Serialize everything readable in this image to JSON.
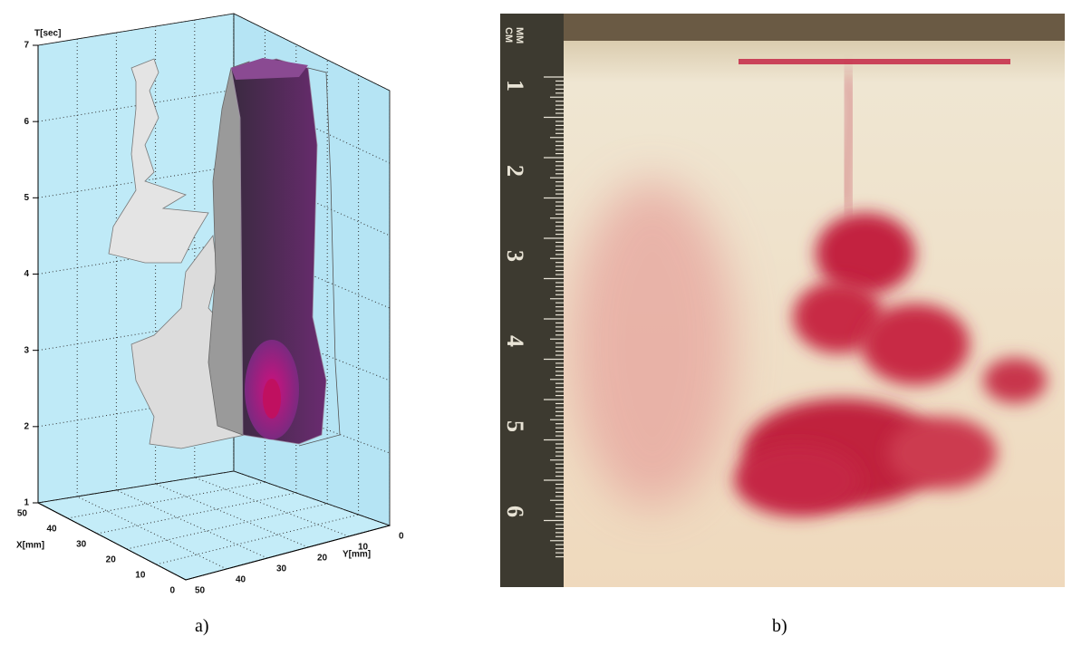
{
  "panel_a": {
    "axis_labels": {
      "t": "T[sec]",
      "x": "X[mm]",
      "y": "Y[mm]"
    },
    "t_ticks": [
      "7",
      "6",
      "5",
      "4",
      "3",
      "2",
      "1"
    ],
    "x_ticks": [
      "50",
      "40",
      "30",
      "20",
      "10",
      "0"
    ],
    "y_ticks": [
      "0",
      "10",
      "20",
      "30",
      "40",
      "50"
    ]
  },
  "panel_b": {
    "ruler_units": [
      "MM",
      "CM"
    ],
    "ruler_numbers": [
      "1",
      "2",
      "3",
      "4",
      "5",
      "6"
    ]
  },
  "captions": [
    "a)",
    "b)"
  ]
}
